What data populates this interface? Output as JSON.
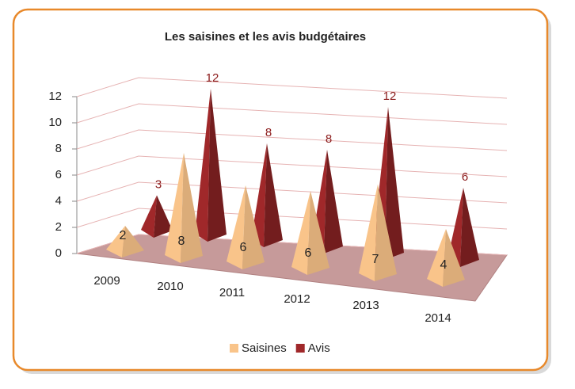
{
  "chart_data": {
    "type": "bar3d-pyramid",
    "title": "Les saisines et les avis budgétaires",
    "categories": [
      "2009",
      "2010",
      "2011",
      "2012",
      "2013",
      "2014"
    ],
    "series": [
      {
        "name": "Saisines",
        "color": "#f9c48a",
        "values": [
          2,
          8,
          6,
          6,
          7,
          4
        ]
      },
      {
        "name": "Avis",
        "color": "#a0282a",
        "values": [
          3,
          12,
          8,
          8,
          12,
          6
        ]
      }
    ],
    "ylim": [
      0,
      12
    ],
    "yticks": [
      0,
      2,
      4,
      6,
      8,
      10,
      12
    ],
    "grid": true,
    "legend": "bottom"
  }
}
